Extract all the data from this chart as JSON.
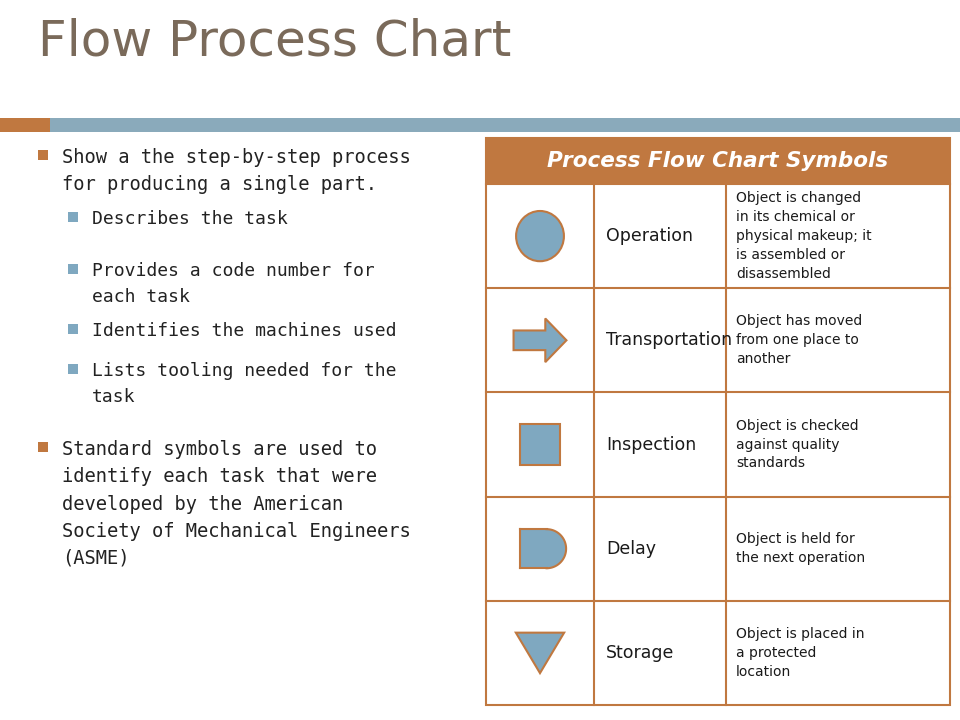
{
  "title": "Flow Process Chart",
  "title_color": "#7a6a5a",
  "title_fontsize": 36,
  "background_color": "#ffffff",
  "header_bar_color": "#8aaabb",
  "accent_bar_color": "#c07840",
  "bullet_color_l0": "#c07840",
  "bullet_color_l1": "#7fa8c0",
  "left_text_color": "#222222",
  "left_bullets": [
    {
      "level": 0,
      "text": "Show a the step-by-step process\nfor producing a single part."
    },
    {
      "level": 1,
      "text": "Describes the task"
    },
    {
      "level": 1,
      "text": "Provides a code number for\neach task"
    },
    {
      "level": 1,
      "text": "Identifies the machines used"
    },
    {
      "level": 1,
      "text": "Lists tooling needed for the\ntask"
    },
    {
      "level": 0,
      "text": "Standard symbols are used to\nidentify each task that were\ndeveloped by the American\nSociety of Mechanical Engineers\n(ASME)"
    }
  ],
  "table_header": "Process Flow Chart Symbols",
  "table_header_bg": "#c07840",
  "table_header_color": "#ffffff",
  "table_border_color": "#c07840",
  "table_bg": "#ffffff",
  "symbol_color": "#7fa8c0",
  "symbol_edge_color": "#c07840",
  "rows": [
    {
      "name": "Operation",
      "shape": "circle",
      "description": "Object is changed\nin its chemical or\nphysical makeup; it\nis assembled or\ndisassembled"
    },
    {
      "name": "Transportation",
      "shape": "arrow",
      "description": "Object has moved\nfrom one place to\nanother"
    },
    {
      "name": "Inspection",
      "shape": "square",
      "description": "Object is checked\nagainst quality\nstandards"
    },
    {
      "name": "Delay",
      "shape": "D",
      "description": "Object is held for\nthe next operation"
    },
    {
      "name": "Storage",
      "shape": "triangle",
      "description": "Object is placed in\na protected\nlocation"
    }
  ]
}
